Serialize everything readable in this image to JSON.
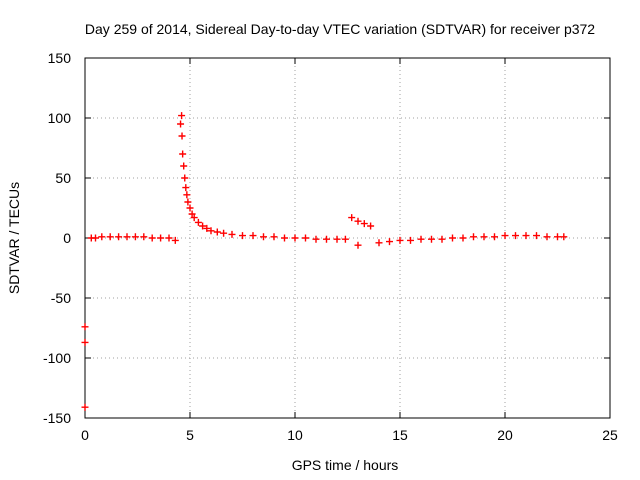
{
  "chart_data": {
    "type": "scatter",
    "title": "Day 259 of 2014, Sidereal Day-to-day VTEC variation (SDTVAR) for receiver p372",
    "xlabel": "GPS time / hours",
    "ylabel": "SDTVAR / TECUs",
    "xlim": [
      0,
      25
    ],
    "ylim": [
      -150,
      150
    ],
    "xticks": [
      0,
      5,
      10,
      15,
      20,
      25
    ],
    "yticks": [
      -150,
      -100,
      -50,
      0,
      50,
      100,
      150
    ],
    "grid": true,
    "marker": "+",
    "series": [
      {
        "name": "SDTVAR",
        "color": "#ff0000",
        "x": [
          0.0,
          0.0,
          0.0,
          0.3,
          0.5,
          0.8,
          1.2,
          1.6,
          2.0,
          2.4,
          2.8,
          3.2,
          3.6,
          4.0,
          4.3,
          4.55,
          4.6,
          4.62,
          4.65,
          4.7,
          4.75,
          4.8,
          4.85,
          4.9,
          5.0,
          5.1,
          5.2,
          5.4,
          5.6,
          5.8,
          6.0,
          6.3,
          6.6,
          7.0,
          7.5,
          8.0,
          8.5,
          9.0,
          9.5,
          10.0,
          10.5,
          11.0,
          11.5,
          12.0,
          12.4,
          12.7,
          13.0,
          13.3,
          13.6,
          13.0,
          14.0,
          14.5,
          15.0,
          15.5,
          16.0,
          16.5,
          17.0,
          17.5,
          18.0,
          18.5,
          19.0,
          19.5,
          20.0,
          20.5,
          21.0,
          21.5,
          22.0,
          22.5,
          22.8
        ],
        "y": [
          -74,
          -87,
          -141,
          0,
          0,
          1,
          1,
          1,
          1,
          1,
          1,
          0,
          0,
          0,
          -2,
          95,
          102,
          85,
          70,
          60,
          50,
          42,
          36,
          30,
          25,
          20,
          17,
          13,
          10,
          8,
          6,
          5,
          4,
          3,
          2,
          2,
          1,
          1,
          0,
          0,
          0,
          -1,
          -1,
          -1,
          -1,
          17,
          14,
          12,
          10,
          -6,
          -4,
          -3,
          -2,
          -2,
          -1,
          -1,
          -1,
          0,
          0,
          1,
          1,
          1,
          2,
          2,
          2,
          2,
          1,
          1,
          1
        ]
      }
    ]
  }
}
